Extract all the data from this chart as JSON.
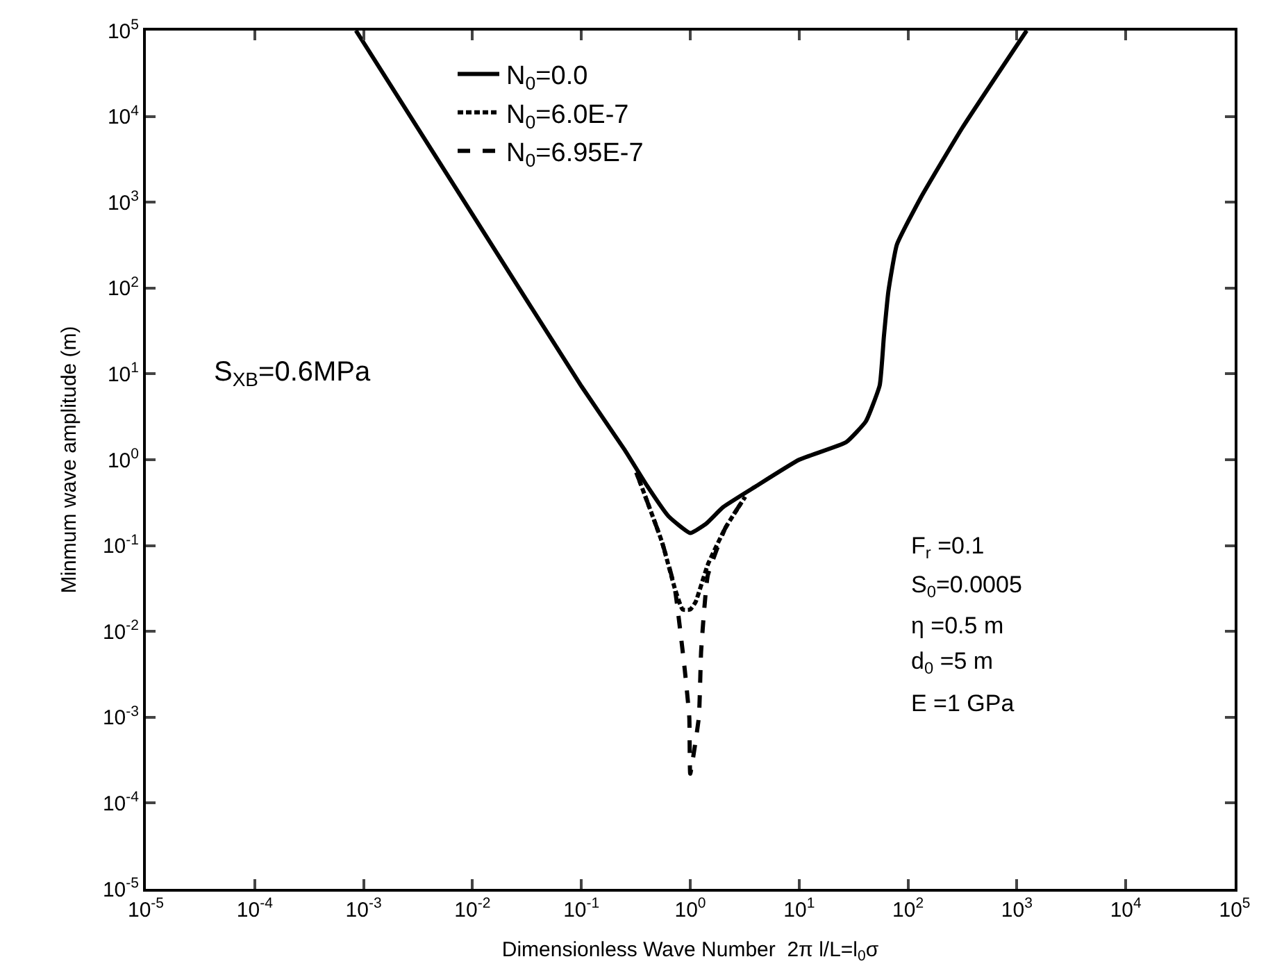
{
  "chart_data": {
    "type": "line",
    "xlabel": "Dimensionless Wave Number  2π l/L=l$_{0}$σ",
    "ylabel": "Minmum wave amplitude (m)",
    "log": "xy",
    "grid": false,
    "legend": "top",
    "marker": "none",
    "xlim": [
      1e-05,
      100000
    ],
    "ylim": [
      1e-05,
      100000
    ],
    "xticks": [
      {
        "value": 1e-05,
        "label": "10$^{-5}$"
      },
      {
        "value": 0.0001,
        "label": "10$^{-4}$"
      },
      {
        "value": 0.001,
        "label": "10$^{-3}$"
      },
      {
        "value": 0.01,
        "label": "10$^{-2}$"
      },
      {
        "value": 0.1,
        "label": "10$^{-1}$"
      },
      {
        "value": 1,
        "label": "10$^{0}$"
      },
      {
        "value": 10,
        "label": "10$^{1}$"
      },
      {
        "value": 100,
        "label": "10$^{2}$"
      },
      {
        "value": 1000,
        "label": "10$^{3}$"
      },
      {
        "value": 10000,
        "label": "10$^{4}$"
      },
      {
        "value": 100000,
        "label": "10$^{5}$"
      }
    ],
    "yticks": [
      {
        "value": 1e-05,
        "label": "10$^{-5}$"
      },
      {
        "value": 0.0001,
        "label": "10$^{-4}$"
      },
      {
        "value": 0.001,
        "label": "10$^{-3}$"
      },
      {
        "value": 0.01,
        "label": "10$^{-2}$"
      },
      {
        "value": 0.1,
        "label": "10$^{-1}$"
      },
      {
        "value": 1,
        "label": "10$^{0}$"
      },
      {
        "value": 10,
        "label": "10$^{1}$"
      },
      {
        "value": 100,
        "label": "10$^{2}$"
      },
      {
        "value": 1000,
        "label": "10$^{3}$"
      },
      {
        "value": 10000,
        "label": "10$^{4}$"
      },
      {
        "value": 100000,
        "label": "10$^{5}$"
      }
    ],
    "series": [
      {
        "name": "N$_{0}$=0.0",
        "color": "#000000",
        "line_style": "solid",
        "x": [
          0.00085,
          0.01,
          0.1,
          0.25,
          0.4,
          0.63,
          1,
          1.4,
          2,
          3.9,
          10,
          27,
          41,
          55,
          60,
          66,
          79,
          132,
          316,
          1230
        ],
        "values": [
          100000,
          720,
          7.2,
          1.3,
          0.5,
          0.22,
          0.14,
          0.18,
          0.28,
          0.48,
          1.0,
          1.6,
          2.8,
          7.4,
          27,
          91,
          320,
          1150,
          7400,
          100000
        ]
      },
      {
        "name": "N$_{0}$=6.0E-7",
        "color": "#000000",
        "line_style": "dotted",
        "x": [
          0.32,
          0.55,
          0.72,
          0.85,
          1,
          1.12,
          1.45,
          2.1,
          3.2
        ],
        "values": [
          0.71,
          0.11,
          0.032,
          0.018,
          0.018,
          0.022,
          0.06,
          0.16,
          0.37
        ]
      },
      {
        "name": "N$_{0}$=6.95E-7",
        "color": "#000000",
        "line_style": "dashed",
        "x": [
          0.32,
          0.55,
          0.72,
          0.89,
          0.98,
          1,
          1.2,
          1.26,
          1.45,
          2.1,
          3.2
        ],
        "values": [
          0.71,
          0.11,
          0.032,
          0.0036,
          0.001,
          0.00022,
          0.001,
          0.006,
          0.045,
          0.16,
          0.37
        ]
      }
    ],
    "annotations": [
      "S$_{XB}$=0.6MPa",
      "F$_{r}$ =0.1",
      "S$_{0}$=0.0005",
      "η =0.5 m",
      "d$_{0}$ =5 m",
      "E =1 GPa"
    ]
  }
}
